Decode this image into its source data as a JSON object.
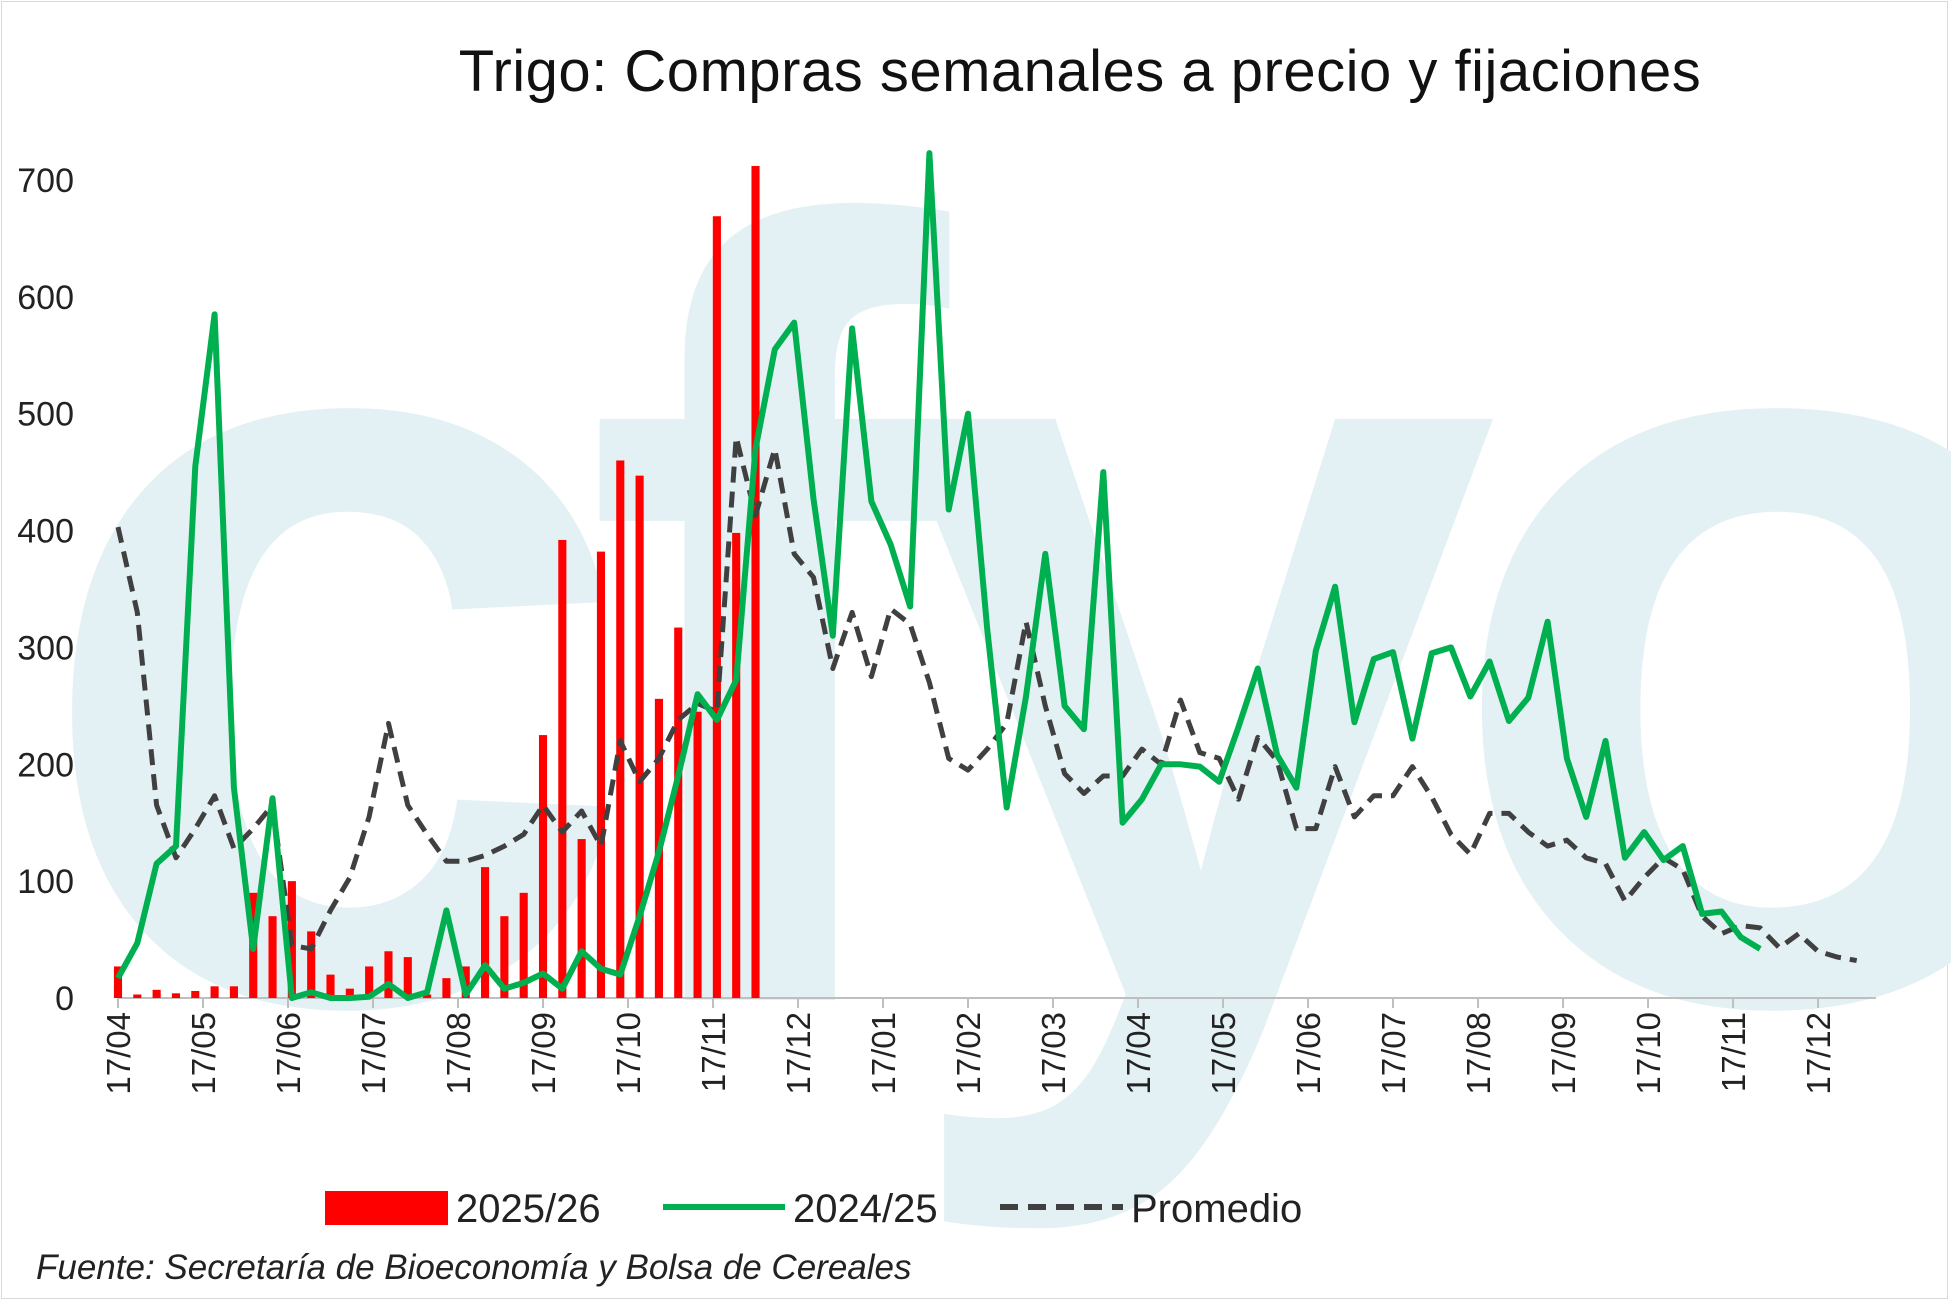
{
  "watermark": "cfyo",
  "source_note": "Fuente: Secretaría de Bioeconomía y Bolsa de Cereales",
  "colors": {
    "series_2025_26": "#ff0000",
    "series_2024_25": "#00b050",
    "series_promedio": "#404040",
    "watermark": "#e3f1f5",
    "axis": "#bfbfbf"
  },
  "chart_data": {
    "type": "bar",
    "title": "Trigo: Compras semanales a precio y fijaciones",
    "xlabel": "",
    "ylabel": "",
    "ylim": [
      0,
      700
    ],
    "yticks": [
      0,
      100,
      200,
      300,
      400,
      500,
      600,
      700
    ],
    "grid": false,
    "legend_position": "bottom",
    "x_tick_labels": [
      "17/04",
      "17/05",
      "17/06",
      "17/07",
      "17/08",
      "17/09",
      "17/10",
      "17/11",
      "17/12",
      "17/01",
      "17/02",
      "17/03",
      "17/04",
      "17/05",
      "17/06",
      "17/07",
      "17/08",
      "17/09",
      "17/10",
      "17/11",
      "17/12"
    ],
    "weeks": 92,
    "series": [
      {
        "name": "2025/26",
        "type": "bar",
        "values": [
          27,
          3,
          7,
          4,
          6,
          10,
          10,
          90,
          70,
          100,
          57,
          20,
          8,
          27,
          40,
          35,
          3,
          17,
          27,
          112,
          70,
          90,
          225,
          392,
          136,
          382,
          460,
          447,
          256,
          317,
          245,
          669,
          398,
          712
        ]
      },
      {
        "name": "2024/25",
        "type": "line",
        "values": [
          17,
          47,
          115,
          130,
          455,
          585,
          180,
          42,
          171,
          0,
          5,
          0,
          0,
          1,
          12,
          0,
          5,
          75,
          3,
          28,
          8,
          13,
          21,
          8,
          40,
          25,
          20,
          70,
          125,
          190,
          260,
          238,
          272,
          470,
          555,
          578,
          427,
          310,
          573,
          425,
          388,
          335,
          723,
          418,
          500,
          315,
          163,
          258,
          380,
          250,
          230,
          450,
          150,
          170,
          200,
          200,
          198,
          185,
          232,
          282,
          208,
          180,
          297,
          352,
          236,
          290,
          296,
          222,
          295,
          300,
          258,
          288,
          237,
          257,
          322,
          205,
          155,
          220,
          120,
          142,
          118,
          130,
          72,
          74,
          52,
          42
        ]
      },
      {
        "name": "Promedio",
        "type": "line",
        "dashed": true,
        "values": [
          403,
          330,
          165,
          120,
          145,
          173,
          128,
          145,
          165,
          45,
          42,
          75,
          103,
          155,
          235,
          165,
          140,
          117,
          117,
          122,
          130,
          140,
          165,
          142,
          160,
          130,
          220,
          185,
          205,
          238,
          252,
          245,
          480,
          413,
          470,
          380,
          360,
          282,
          330,
          275,
          333,
          320,
          270,
          205,
          195,
          213,
          235,
          322,
          250,
          192,
          175,
          190,
          190,
          213,
          200,
          255,
          210,
          205,
          170,
          223,
          203,
          145,
          145,
          198,
          155,
          173,
          173,
          198,
          172,
          140,
          123,
          158,
          158,
          142,
          130,
          135,
          120,
          115,
          83,
          103,
          120,
          110,
          70,
          55,
          62,
          60,
          43,
          55,
          40,
          35,
          32
        ]
      }
    ]
  }
}
